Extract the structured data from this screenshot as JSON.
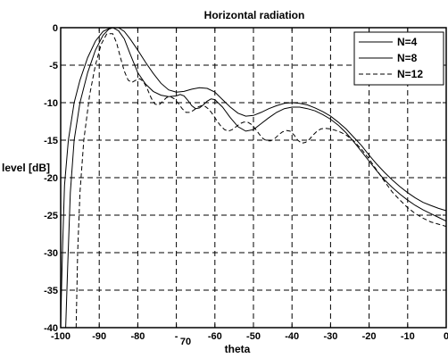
{
  "chart_data": {
    "type": "line",
    "title": "Horizontal radiation",
    "xlabel": "theta",
    "ylabel": "level [dB]",
    "xlim": [
      -100,
      0
    ],
    "ylim": [
      -40,
      0
    ],
    "x_tick_labels": [
      "-100",
      "-90",
      "-80",
      "-",
      "-60",
      "-50",
      "-40",
      "-30",
      "-20",
      "-10",
      "0"
    ],
    "x_extra_label": "70",
    "y_tick_labels": [
      "0",
      "-5",
      "-10",
      "-15",
      "-20",
      "-25",
      "-30",
      "-35",
      "-40"
    ],
    "grid": true,
    "grid_style": "dashed",
    "legend_position": "top-right",
    "series": [
      {
        "name": "N=4",
        "style": "solid",
        "points": [
          [
            -98.7,
            -40
          ],
          [
            -98.2,
            -32
          ],
          [
            -97.5,
            -22
          ],
          [
            -96.5,
            -15
          ],
          [
            -95,
            -10
          ],
          [
            -93,
            -6
          ],
          [
            -91,
            -3
          ],
          [
            -89,
            -1
          ],
          [
            -87.5,
            -0.2
          ],
          [
            -86.5,
            0
          ],
          [
            -85,
            -0.4
          ],
          [
            -83.5,
            -1.5
          ],
          [
            -82,
            -3.5
          ],
          [
            -80,
            -6
          ],
          [
            -78,
            -7.5
          ],
          [
            -76,
            -8.5
          ],
          [
            -74,
            -9
          ],
          [
            -72,
            -9.2
          ],
          [
            -70,
            -9.1
          ],
          [
            -69,
            -8.9
          ],
          [
            -68,
            -9.1
          ],
          [
            -67,
            -9.7
          ],
          [
            -66,
            -10.4
          ],
          [
            -65,
            -10.8
          ],
          [
            -64,
            -10.7
          ],
          [
            -63,
            -10.3
          ],
          [
            -62,
            -9.8
          ],
          [
            -61,
            -9.5
          ],
          [
            -60,
            -9.6
          ],
          [
            -58,
            -10.6
          ],
          [
            -56,
            -12
          ],
          [
            -54,
            -13.2
          ],
          [
            -52,
            -13.8
          ],
          [
            -50,
            -13.6
          ],
          [
            -48,
            -12.8
          ],
          [
            -46,
            -12
          ],
          [
            -44,
            -11.3
          ],
          [
            -42,
            -10.8
          ],
          [
            -40,
            -10.6
          ],
          [
            -38,
            -10.6
          ],
          [
            -36,
            -10.8
          ],
          [
            -34,
            -11.1
          ],
          [
            -32,
            -11.6
          ],
          [
            -30,
            -12.2
          ],
          [
            -28,
            -13
          ],
          [
            -26,
            -14
          ],
          [
            -24,
            -15.2
          ],
          [
            -22,
            -16.5
          ],
          [
            -20,
            -17.8
          ],
          [
            -18,
            -19.1
          ],
          [
            -16,
            -20.3
          ],
          [
            -14,
            -21.3
          ],
          [
            -12,
            -22.2
          ],
          [
            -10,
            -23
          ],
          [
            -8,
            -23.7
          ],
          [
            -6,
            -24.3
          ],
          [
            -4,
            -24.8
          ],
          [
            -2,
            -25.3
          ],
          [
            0,
            -25.8
          ]
        ]
      },
      {
        "name": "N=8",
        "style": "solid",
        "points": [
          [
            -100,
            -40
          ],
          [
            -99.8,
            -35
          ],
          [
            -99.5,
            -29
          ],
          [
            -99,
            -21
          ],
          [
            -98,
            -15
          ],
          [
            -96.5,
            -10
          ],
          [
            -95,
            -7
          ],
          [
            -93,
            -4
          ],
          [
            -91,
            -1.8
          ],
          [
            -89,
            -0.5
          ],
          [
            -87,
            0
          ],
          [
            -85,
            0
          ],
          [
            -83.5,
            -0.5
          ],
          [
            -82,
            -1.5
          ],
          [
            -80,
            -3
          ],
          [
            -78,
            -4.6
          ],
          [
            -76,
            -6.1
          ],
          [
            -74,
            -7.4
          ],
          [
            -72,
            -8.3
          ],
          [
            -70,
            -8.6
          ],
          [
            -68,
            -8.5
          ],
          [
            -66,
            -8.2
          ],
          [
            -64,
            -8
          ],
          [
            -62,
            -8.1
          ],
          [
            -60,
            -8.6
          ],
          [
            -58,
            -9.6
          ],
          [
            -56,
            -10.6
          ],
          [
            -54,
            -11.4
          ],
          [
            -52,
            -11.8
          ],
          [
            -50,
            -11.7
          ],
          [
            -48,
            -11.3
          ],
          [
            -46,
            -10.8
          ],
          [
            -44,
            -10.4
          ],
          [
            -42,
            -10.1
          ],
          [
            -40,
            -10
          ],
          [
            -38,
            -10.1
          ],
          [
            -36,
            -10.3
          ],
          [
            -34,
            -10.7
          ],
          [
            -32,
            -11.2
          ],
          [
            -30,
            -11.8
          ],
          [
            -28,
            -12.6
          ],
          [
            -26,
            -13.5
          ],
          [
            -24,
            -14.6
          ],
          [
            -22,
            -15.7
          ],
          [
            -20,
            -17
          ],
          [
            -18,
            -18.2
          ],
          [
            -16,
            -19.3
          ],
          [
            -14,
            -20.3
          ],
          [
            -12,
            -21.2
          ],
          [
            -10,
            -22
          ],
          [
            -8,
            -22.7
          ],
          [
            -6,
            -23.3
          ],
          [
            -4,
            -23.7
          ],
          [
            -2,
            -24.1
          ],
          [
            0,
            -24.4
          ]
        ]
      },
      {
        "name": "N=12",
        "style": "dashed",
        "points": [
          [
            -96,
            -40
          ],
          [
            -95.6,
            -30
          ],
          [
            -95,
            -22
          ],
          [
            -94,
            -15
          ],
          [
            -92.5,
            -9
          ],
          [
            -91,
            -5
          ],
          [
            -89.5,
            -2.2
          ],
          [
            -88,
            -0.8
          ],
          [
            -86.5,
            -0.8
          ],
          [
            -85.5,
            -2
          ],
          [
            -84.5,
            -4
          ],
          [
            -83.5,
            -5.8
          ],
          [
            -82.5,
            -7
          ],
          [
            -81.5,
            -7.3
          ],
          [
            -80.5,
            -7
          ],
          [
            -79.5,
            -6.8
          ],
          [
            -78.5,
            -7.2
          ],
          [
            -77.5,
            -8.2
          ],
          [
            -76.5,
            -9.4
          ],
          [
            -75.5,
            -10.2
          ],
          [
            -74.5,
            -10.3
          ],
          [
            -73.5,
            -9.8
          ],
          [
            -72.5,
            -9.3
          ],
          [
            -71.5,
            -9.2
          ],
          [
            -70.5,
            -9.5
          ],
          [
            -69.5,
            -10.1
          ],
          [
            -68.5,
            -10.8
          ],
          [
            -67.5,
            -11.3
          ],
          [
            -66.5,
            -11.3
          ],
          [
            -65.5,
            -11
          ],
          [
            -64.5,
            -10.6
          ],
          [
            -63.5,
            -10.4
          ],
          [
            -62.5,
            -10.5
          ],
          [
            -61.5,
            -10.9
          ],
          [
            -60.5,
            -11.6
          ],
          [
            -59.5,
            -12.4
          ],
          [
            -58.5,
            -13.1
          ],
          [
            -57.5,
            -13.6
          ],
          [
            -56.5,
            -13.8
          ],
          [
            -55.5,
            -13.6
          ],
          [
            -54.5,
            -13.2
          ],
          [
            -53.5,
            -12.8
          ],
          [
            -52.5,
            -12.6
          ],
          [
            -51.5,
            -12.6
          ],
          [
            -50.5,
            -12.9
          ],
          [
            -49.5,
            -13.5
          ],
          [
            -48.5,
            -14.2
          ],
          [
            -47.5,
            -14.8
          ],
          [
            -46.5,
            -15.1
          ],
          [
            -45.5,
            -15.1
          ],
          [
            -44.5,
            -14.8
          ],
          [
            -43.5,
            -14.3
          ],
          [
            -42.5,
            -13.9
          ],
          [
            -41.5,
            -13.7
          ],
          [
            -40.5,
            -13.8
          ],
          [
            -39.5,
            -14.3
          ],
          [
            -38.5,
            -15
          ],
          [
            -37.5,
            -15.4
          ],
          [
            -36.5,
            -15.3
          ],
          [
            -35.5,
            -14.9
          ],
          [
            -34.5,
            -14.3
          ],
          [
            -33.5,
            -13.8
          ],
          [
            -32.5,
            -13.5
          ],
          [
            -31.5,
            -13.4
          ],
          [
            -30,
            -13.5
          ],
          [
            -28,
            -13.8
          ],
          [
            -26,
            -14.3
          ],
          [
            -24,
            -15.1
          ],
          [
            -22,
            -16.2
          ],
          [
            -20,
            -17.5
          ],
          [
            -18,
            -19
          ],
          [
            -16,
            -20.5
          ],
          [
            -14,
            -21.9
          ],
          [
            -12,
            -23
          ],
          [
            -10,
            -24
          ],
          [
            -8,
            -24.8
          ],
          [
            -6,
            -25.4
          ],
          [
            -4,
            -25.9
          ],
          [
            -2,
            -26.2
          ],
          [
            0,
            -26.5
          ]
        ]
      }
    ]
  }
}
